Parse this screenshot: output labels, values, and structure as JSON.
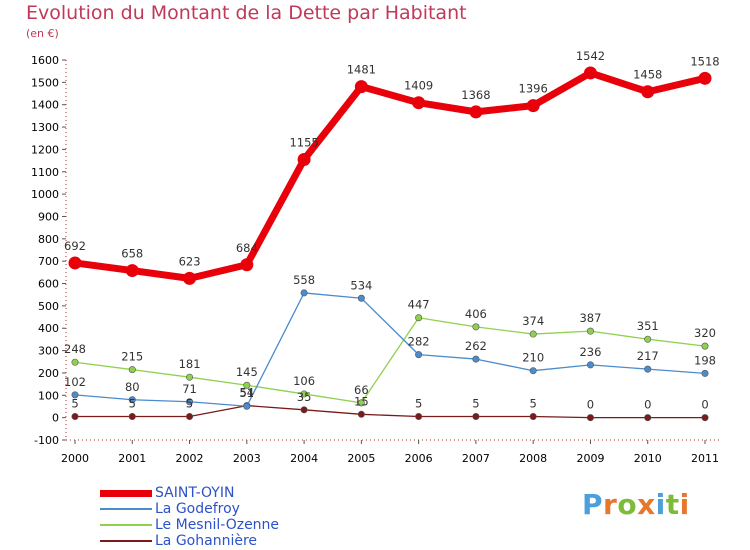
{
  "header": {
    "title": "Evolution du Montant de la Dette par Habitant",
    "unit": "(en €)"
  },
  "logo": {
    "text": "Proxiti",
    "letter_colors": [
      "#4a9fdc",
      "#e8772e",
      "#7dbb3a",
      "#e8772e",
      "#4a9fdc",
      "#7dbb3a",
      "#e8772e"
    ]
  },
  "chart_data": {
    "type": "line",
    "title": "Evolution du Montant de la Dette par Habitant",
    "subtitle": "(en €)",
    "xlabel": "",
    "ylabel": "",
    "categories": [
      "2000",
      "2001",
      "2002",
      "2003",
      "2004",
      "2005",
      "2006",
      "2007",
      "2008",
      "2009",
      "2010",
      "2011"
    ],
    "ylim": [
      -100,
      1600
    ],
    "yticks": [
      -100,
      0,
      100,
      200,
      300,
      400,
      500,
      600,
      700,
      800,
      900,
      1000,
      1100,
      1200,
      1300,
      1400,
      1500,
      1600
    ],
    "grid": false,
    "legend_position": "bottom-left",
    "series": [
      {
        "name": "SAINT-OYIN",
        "color": "#e8000b",
        "values": [
          692,
          658,
          623,
          684,
          1155,
          1481,
          1409,
          1368,
          1396,
          1542,
          1458,
          1518
        ],
        "labels": [
          "692",
          "658",
          "623",
          "684",
          "1155",
          "1481",
          "1409",
          "1368",
          "1396",
          "1542",
          "1458",
          "1518"
        ]
      },
      {
        "name": "La Godefroy",
        "color": "#4b8ccc",
        "values": [
          102,
          80,
          71,
          51,
          558,
          534,
          282,
          262,
          210,
          236,
          217,
          198
        ],
        "labels": [
          "102",
          "80",
          "71",
          "51",
          "558",
          "534",
          "282",
          "262",
          "210",
          "236",
          "217",
          "198"
        ]
      },
      {
        "name": "Le Mesnil-Ozenne",
        "color": "#8fd14f",
        "values": [
          248,
          215,
          181,
          145,
          106,
          66,
          447,
          406,
          374,
          387,
          351,
          320
        ],
        "labels": [
          "248",
          "215",
          "181",
          "145",
          "106",
          "66",
          "447",
          "406",
          "374",
          "387",
          "351",
          "320"
        ]
      },
      {
        "name": "La Gohannière",
        "color": "#7a1a1a",
        "values": [
          5,
          5,
          5,
          54,
          35,
          15,
          5,
          5,
          5,
          0,
          0,
          0
        ],
        "labels": [
          "5",
          "5",
          "5",
          "54",
          "35",
          "15",
          "5",
          "5",
          "5",
          "0",
          "0",
          "0"
        ]
      }
    ]
  }
}
